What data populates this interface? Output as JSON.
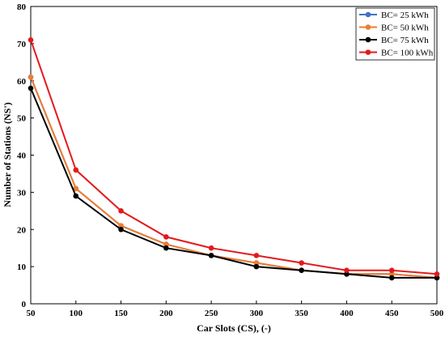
{
  "chart_data": {
    "type": "line",
    "title": "",
    "xlabel": "Car Slots (CS), (-)",
    "ylabel": "Number of Stations (NS')",
    "x": [
      50,
      100,
      150,
      200,
      250,
      300,
      350,
      400,
      450,
      500
    ],
    "xlim": [
      50,
      500
    ],
    "ylim": [
      0,
      80
    ],
    "x_ticks": [
      50,
      100,
      150,
      200,
      250,
      300,
      350,
      400,
      450,
      500
    ],
    "y_ticks": [
      0,
      10,
      20,
      30,
      40,
      50,
      60,
      70,
      80
    ],
    "grid": false,
    "legend_position": "top-right",
    "series": [
      {
        "name": "BC= 25 kWh",
        "color": "#4472C4",
        "values": [
          61,
          31,
          21,
          16,
          13,
          11,
          9,
          8,
          8,
          7
        ]
      },
      {
        "name": "BC= 50 kWh",
        "color": "#ED7D31",
        "values": [
          61,
          31,
          21,
          16,
          13,
          11,
          9,
          8,
          8,
          7
        ]
      },
      {
        "name": "BC= 75 kWh",
        "color": "#000000",
        "values": [
          58,
          29,
          20,
          15,
          13,
          10,
          9,
          8,
          7,
          7
        ]
      },
      {
        "name": "BC= 100 kWh",
        "color": "#E31A1C",
        "values": [
          71,
          36,
          25,
          18,
          15,
          13,
          11,
          9,
          9,
          8
        ]
      }
    ]
  }
}
